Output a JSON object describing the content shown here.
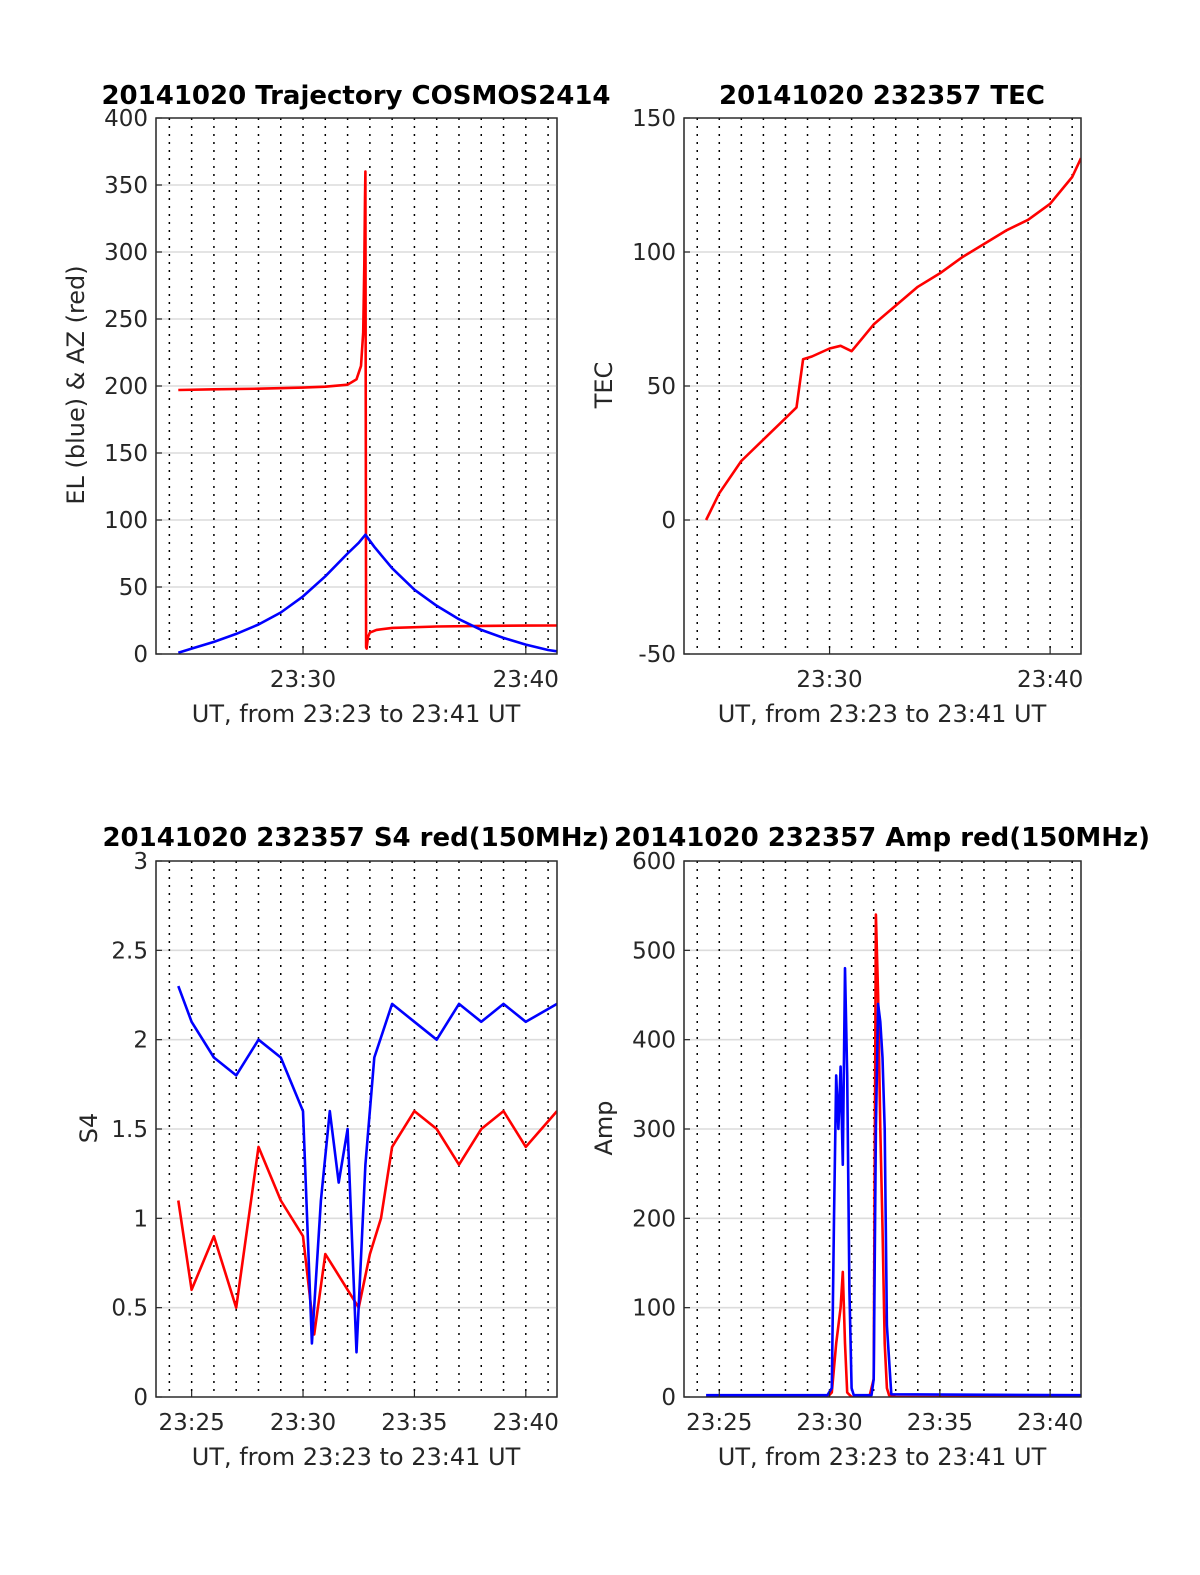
{
  "chart_data": [
    {
      "id": "p1",
      "type": "line",
      "title": "20141020 Trajectory COSMOS2414",
      "xlabel": "UT, from 23:23 to 23:41 UT",
      "ylabel": "EL (blue) & AZ (red)",
      "xlim": [
        23.4,
        41.4
      ],
      "ylim": [
        0,
        400
      ],
      "yticks": [
        0,
        50,
        100,
        150,
        200,
        250,
        300,
        350,
        400
      ],
      "xticks": [
        {
          "v": 30,
          "label": "23:30"
        },
        {
          "v": 40,
          "label": "23:40"
        }
      ],
      "vgrid": [
        24,
        25,
        26,
        27,
        28,
        29,
        30,
        31,
        32,
        33,
        34,
        35,
        36,
        37,
        38,
        39,
        40,
        41
      ],
      "hgrid": true,
      "series": [
        {
          "color": "#ff0000",
          "x": [
            24.4,
            26,
            28,
            30,
            31,
            32,
            32.4,
            32.6,
            32.7,
            32.75,
            32.78,
            32.8,
            32.83,
            32.86,
            32.88,
            32.92,
            33,
            33.3,
            34,
            36,
            38,
            40,
            41.4
          ],
          "y": [
            197,
            197.5,
            198,
            198.8,
            199.5,
            201,
            205,
            215,
            240,
            290,
            340,
            360,
            5,
            4,
            8,
            13,
            16,
            18,
            19.5,
            20.5,
            21,
            21.2,
            21.3
          ]
        },
        {
          "color": "#0000ff",
          "x": [
            24.4,
            25,
            26,
            27,
            28,
            29,
            30,
            31,
            32,
            32.5,
            32.8,
            33.2,
            34,
            35,
            36,
            37,
            38,
            39,
            40,
            41,
            41.4
          ],
          "y": [
            1,
            4,
            9,
            15,
            22,
            31,
            43,
            58,
            75,
            83,
            89,
            80,
            64,
            48,
            36,
            26,
            18,
            12,
            7,
            3,
            2
          ]
        }
      ]
    },
    {
      "id": "p2",
      "type": "line",
      "title": "20141020 232357 TEC",
      "xlabel": "UT, from 23:23 to 23:41 UT",
      "ylabel": "TEC",
      "xlim": [
        23.4,
        41.4
      ],
      "ylim": [
        -50,
        150
      ],
      "yticks": [
        -50,
        0,
        50,
        100,
        150
      ],
      "xticks": [
        {
          "v": 30,
          "label": "23:30"
        },
        {
          "v": 40,
          "label": "23:40"
        }
      ],
      "vgrid": [
        24,
        25,
        26,
        27,
        28,
        29,
        30,
        31,
        32,
        33,
        34,
        35,
        36,
        37,
        38,
        39,
        40,
        41
      ],
      "hgrid": true,
      "series": [
        {
          "color": "#ff0000",
          "x": [
            24.4,
            25,
            26,
            27,
            28,
            28.5,
            28.8,
            29.2,
            30,
            30.5,
            31,
            31.5,
            32,
            33,
            34,
            35,
            36,
            37,
            38,
            39,
            40,
            41,
            41.4
          ],
          "y": [
            0,
            10,
            22,
            30,
            38,
            42,
            60,
            61,
            64,
            65,
            63,
            68,
            73,
            80,
            87,
            92,
            98,
            103,
            108,
            112,
            118,
            128,
            135
          ]
        }
      ]
    },
    {
      "id": "p3",
      "type": "line",
      "title": "20141020 232357 S4 red(150MHz)",
      "xlabel": "UT, from 23:23 to 23:41 UT",
      "ylabel": "S4",
      "xlim": [
        23.4,
        41.4
      ],
      "ylim": [
        0,
        3
      ],
      "yticks": [
        0,
        0.5,
        1,
        1.5,
        2,
        2.5,
        3
      ],
      "xticks": [
        {
          "v": 25,
          "label": "23:25"
        },
        {
          "v": 30,
          "label": "23:30"
        },
        {
          "v": 35,
          "label": "23:35"
        },
        {
          "v": 40,
          "label": "23:40"
        }
      ],
      "vgrid": [
        24,
        25,
        26,
        27,
        28,
        29,
        30,
        31,
        32,
        33,
        34,
        35,
        36,
        37,
        38,
        39,
        40,
        41
      ],
      "hgrid": true,
      "series": [
        {
          "color": "#ff0000",
          "x": [
            24.4,
            25,
            26,
            27,
            28,
            29,
            30,
            30.5,
            31,
            31.5,
            32,
            32.5,
            33,
            33.5,
            34,
            35,
            36,
            37,
            38,
            39,
            40,
            41.4
          ],
          "y": [
            1.1,
            0.6,
            0.9,
            0.5,
            1.4,
            1.1,
            0.9,
            0.35,
            0.8,
            0.7,
            0.6,
            0.5,
            0.8,
            1.0,
            1.4,
            1.6,
            1.5,
            1.3,
            1.5,
            1.6,
            1.4,
            1.6
          ]
        },
        {
          "color": "#0000ff",
          "x": [
            24.4,
            25,
            26,
            27,
            28,
            29,
            30,
            30.4,
            30.8,
            31.2,
            31.6,
            32,
            32.4,
            32.8,
            33.2,
            34,
            35,
            36,
            37,
            38,
            39,
            40,
            41.4
          ],
          "y": [
            2.3,
            2.1,
            1.9,
            1.8,
            2.0,
            1.9,
            1.6,
            0.3,
            1.1,
            1.6,
            1.2,
            1.5,
            0.25,
            1.3,
            1.9,
            2.2,
            2.1,
            2.0,
            2.2,
            2.1,
            2.2,
            2.1,
            2.2
          ]
        }
      ]
    },
    {
      "id": "p4",
      "type": "line",
      "title": "20141020 232357 Amp red(150MHz)",
      "xlabel": "UT, from 23:23 to 23:41 UT",
      "ylabel": "Amp",
      "xlim": [
        23.4,
        41.4
      ],
      "ylim": [
        0,
        600
      ],
      "yticks": [
        0,
        100,
        200,
        300,
        400,
        500,
        600
      ],
      "xticks": [
        {
          "v": 25,
          "label": "23:25"
        },
        {
          "v": 30,
          "label": "23:30"
        },
        {
          "v": 35,
          "label": "23:35"
        },
        {
          "v": 40,
          "label": "23:40"
        }
      ],
      "vgrid": [
        24,
        25,
        26,
        27,
        28,
        29,
        30,
        31,
        32,
        33,
        34,
        35,
        36,
        37,
        38,
        39,
        40,
        41
      ],
      "hgrid": true,
      "series": [
        {
          "color": "#ff0000",
          "x": [
            24.4,
            29.9,
            30.1,
            30.3,
            30.5,
            30.6,
            30.7,
            30.8,
            31,
            31.8,
            32.0,
            32.1,
            32.2,
            32.3,
            32.4,
            32.5,
            32.6,
            32.7,
            33,
            41.4
          ],
          "y": [
            0,
            0,
            5,
            60,
            100,
            140,
            60,
            5,
            0,
            0,
            20,
            540,
            450,
            300,
            190,
            60,
            10,
            2,
            0,
            0
          ]
        },
        {
          "color": "#0000ff",
          "x": [
            24.4,
            29.9,
            30.1,
            30.2,
            30.3,
            30.4,
            30.5,
            30.6,
            30.7,
            30.8,
            30.9,
            31.0,
            31.1,
            31.9,
            32.0,
            32.1,
            32.2,
            32.3,
            32.4,
            32.5,
            32.6,
            32.8,
            41.4
          ],
          "y": [
            2,
            2,
            10,
            200,
            360,
            300,
            370,
            260,
            480,
            360,
            120,
            10,
            2,
            2,
            20,
            300,
            440,
            420,
            380,
            300,
            80,
            3,
            2
          ]
        }
      ]
    }
  ]
}
